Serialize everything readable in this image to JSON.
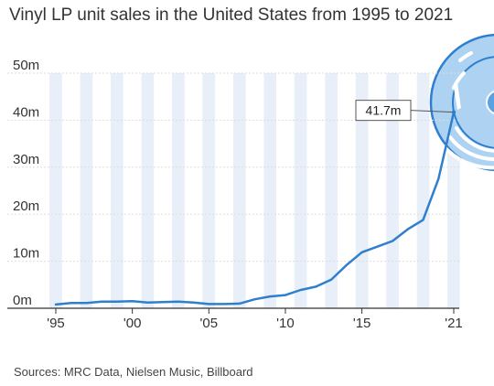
{
  "colors": {
    "line": "#2f7fcf",
    "band": "#e9eff8",
    "grid": "#dddddd",
    "axis": "#333333",
    "record": "#aed3f2",
    "record_outline": "#2f7fcf",
    "record_center": "#5aa2e0"
  },
  "chart_data": {
    "type": "line",
    "title": "Vinyl LP unit sales in the United States from 1995 to 2021",
    "source": "Sources: MRC Data, Nielsen Music, Billboard",
    "xlabel": "",
    "ylabel": "",
    "x": [
      1995,
      1996,
      1997,
      1998,
      1999,
      2000,
      2001,
      2002,
      2003,
      2004,
      2005,
      2006,
      2007,
      2008,
      2009,
      2010,
      2011,
      2012,
      2013,
      2014,
      2015,
      2016,
      2017,
      2018,
      2019,
      2020,
      2021
    ],
    "series": [
      {
        "values": [
          0.8,
          1.1,
          1.1,
          1.4,
          1.4,
          1.5,
          1.2,
          1.3,
          1.4,
          1.2,
          0.9,
          0.9,
          1.0,
          1.9,
          2.5,
          2.8,
          3.9,
          4.6,
          6.1,
          9.2,
          11.9,
          13.1,
          14.3,
          16.8,
          18.8,
          27.5,
          41.7
        ]
      }
    ],
    "ylim": [
      0,
      50
    ],
    "xlim": [
      1995,
      2021
    ],
    "yticks": [
      0,
      10,
      20,
      30,
      40,
      50
    ],
    "ytick_labels": [
      "0m",
      "10m",
      "20m",
      "30m",
      "40m",
      "50m"
    ],
    "xticks": [
      1995,
      2000,
      2005,
      2010,
      2015,
      2021
    ],
    "xtick_labels": [
      "'95",
      "'00",
      "'05",
      "'10",
      "'15",
      "'21"
    ],
    "grid": true,
    "alternating_year_bands": true,
    "annotation": {
      "x": 2021,
      "y": 41.7,
      "label": "41.7m"
    }
  }
}
